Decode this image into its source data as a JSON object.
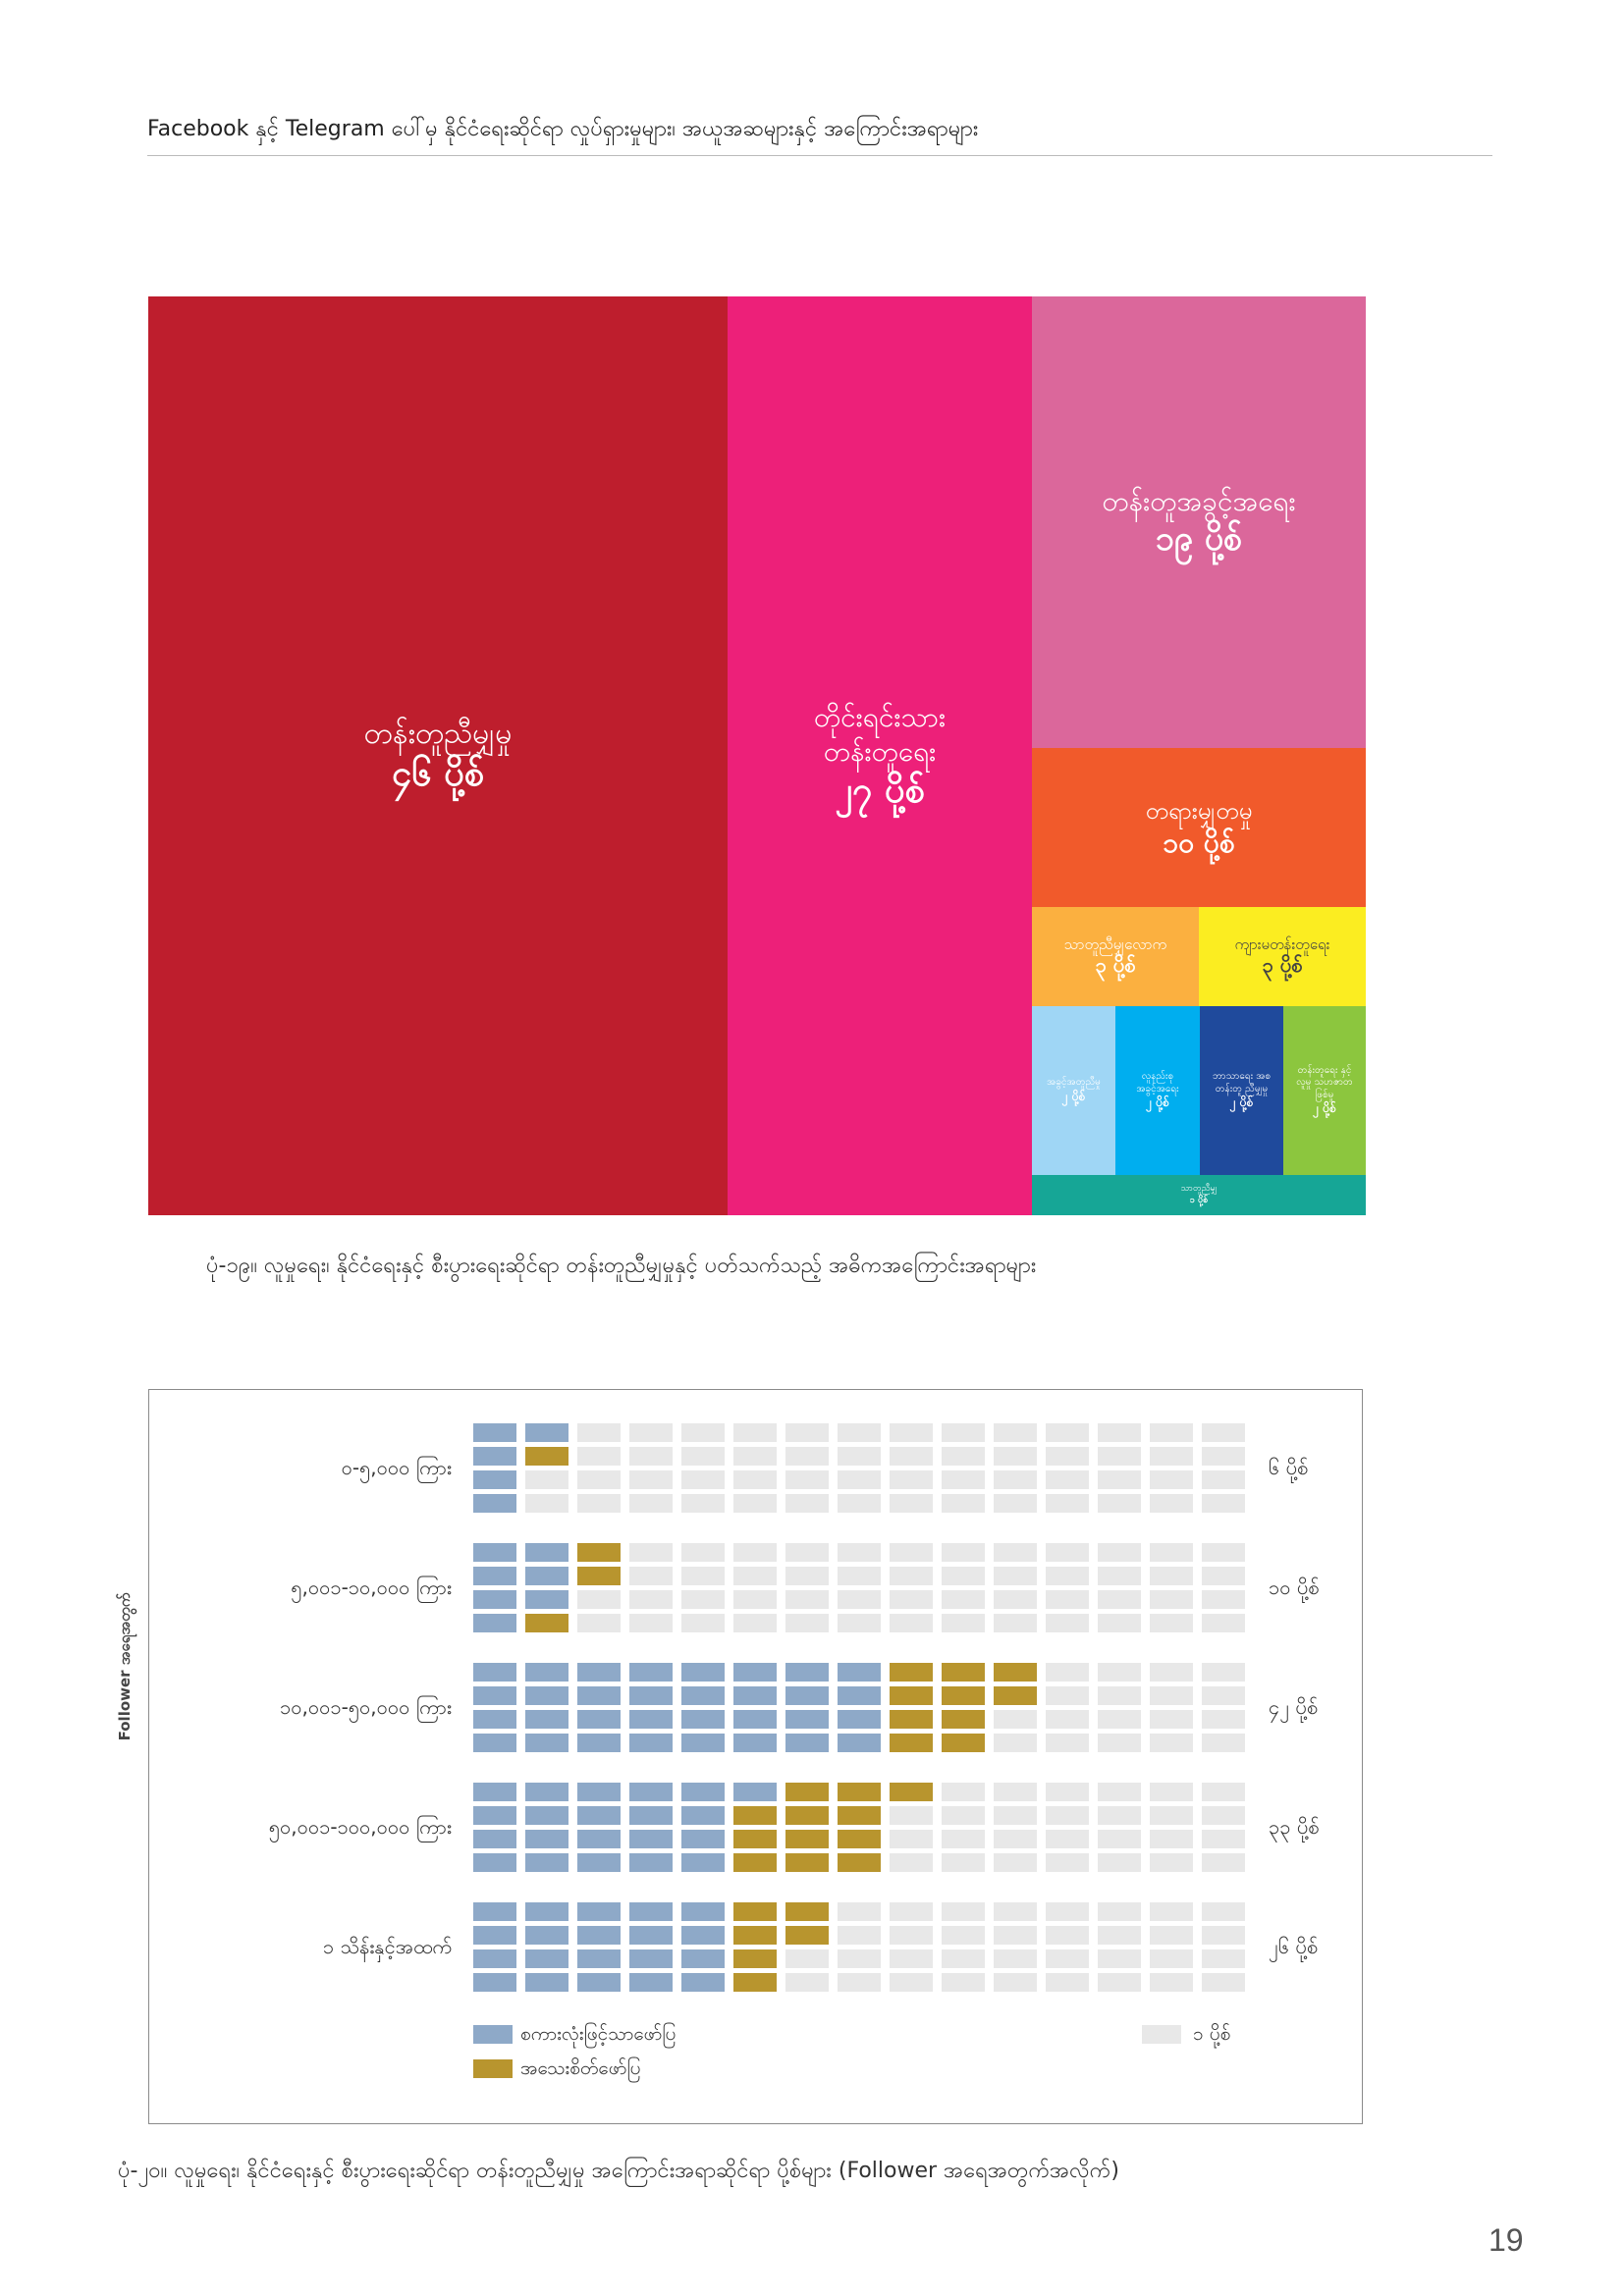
{
  "header": {
    "title": "Facebook နှင့် Telegram ပေါ်မှ နိုင်ငံရေးဆိုင်ရာ လှုပ်ရှားမှုများ၊ အယူအဆများနှင့် အကြောင်းအရာများ"
  },
  "treemap": {
    "colors": {
      "c1": "#be1e2d",
      "c2": "#ed2079",
      "c3": "#db679b",
      "c4": "#f15a2b",
      "c5": "#fbb040",
      "c6": "#fbed21",
      "c7": "#9fd6f5",
      "c8": "#00aeef",
      "c9": "#1f4a9c",
      "c10": "#8cc63e",
      "c11": "#16a696"
    },
    "cells": [
      {
        "label": "တန်းတူညီမျှမှု",
        "value": "၄၆ ပို့စ်",
        "count": 46
      },
      {
        "label": "တိုင်းရင်းသား တန်းတူရေး",
        "value": "၂၇ ပို့စ်",
        "count": 27
      },
      {
        "label": "တန်းတူအခွင့်အရေး",
        "value": "၁၉ ပို့စ်",
        "count": 19
      },
      {
        "label": "တရားမျှတမှု",
        "value": "၁၀ ပို့စ်",
        "count": 10
      },
      {
        "label": "သာတူညီမျှလောက",
        "value": "၃ ပို့စ်",
        "count": 3
      },
      {
        "label": "ကျားမတန်းတူရေး",
        "value": "၃ ပို့စ်",
        "count": 3
      },
      {
        "label": "အခွင့်အတူညီမှု",
        "value": "၂ ပို့စ်",
        "count": 2
      },
      {
        "label": "လူနည်းစု အခွင့်အရေး",
        "value": "၂ ပို့စ်",
        "count": 2
      },
      {
        "label": "ဘာသာရေး အစ တန်းတူ ညီမျှမှု",
        "value": "၂ ပို့စ်",
        "count": 2
      },
      {
        "label": "တန်းတူရေး နှင့် လူမှု သဟဇာတ ဖြစ်မှု",
        "value": "၂ ပို့စ်",
        "count": 2
      },
      {
        "label": "သာတူညီမျှ",
        "value": "၁ ပို့စ်",
        "count": 1
      }
    ]
  },
  "caption1": "ပုံ-၁၉။ လူမှုရေး၊ နိုင်ငံရေးနှင့် စီးပွားရေးဆိုင်ရာ တန်းတူညီမျှမှုနှင့် ပတ်သက်သည့် အဓိကအကြောင်းအရာများ",
  "waffle": {
    "axis_title": "Follower အရေအတွက်",
    "colors": {
      "text_post": "#8ea9c8",
      "image_post": "#b8952e",
      "empty": "#e8e8e8"
    },
    "rows": [
      {
        "label": "၀-၅,၀၀၀ ကြား",
        "count_label": "၆ ပို့စ်",
        "text_posts": 5,
        "image_posts": 1,
        "total": 6
      },
      {
        "label": "၅,၀၀၁-၁၀,၀၀၀ ကြား",
        "count_label": "၁၀ ပို့စ်",
        "text_posts": 7,
        "image_posts": 3,
        "total": 10
      },
      {
        "label": "၁၀,၀၀၁-၅၀,၀၀၀ ကြား",
        "count_label": "၄၂ ပို့စ်",
        "text_posts": 32,
        "image_posts": 10,
        "total": 42
      },
      {
        "label": "၅၀,၀၀၁-၁၀၀,၀၀၀ ကြား",
        "count_label": "၃၃ ပို့စ်",
        "text_posts": 21,
        "image_posts": 12,
        "total": 33
      },
      {
        "label": "၁ သိန်းနှင့်အထက်",
        "count_label": "၂၆ ပို့စ်",
        "text_posts": 20,
        "image_posts": 6,
        "total": 26
      }
    ],
    "legend": {
      "text_post": "စကားလုံးဖြင့်သာဖော်ပြ",
      "image_post": "အသေးစိတ်ဖော်ပြ",
      "unit": "၁ ပို့စ်"
    }
  },
  "caption2": "ပုံ-၂၀။ လူမှုရေး၊ နိုင်ငံရေးနှင့် စီးပွားရေးဆိုင်ရာ တန်းတူညီမျှမှု အကြောင်းအရာဆိုင်ရာ ပို့စ်များ (Follower အရေအတွက်အလိုက်)",
  "page_number": "19"
}
